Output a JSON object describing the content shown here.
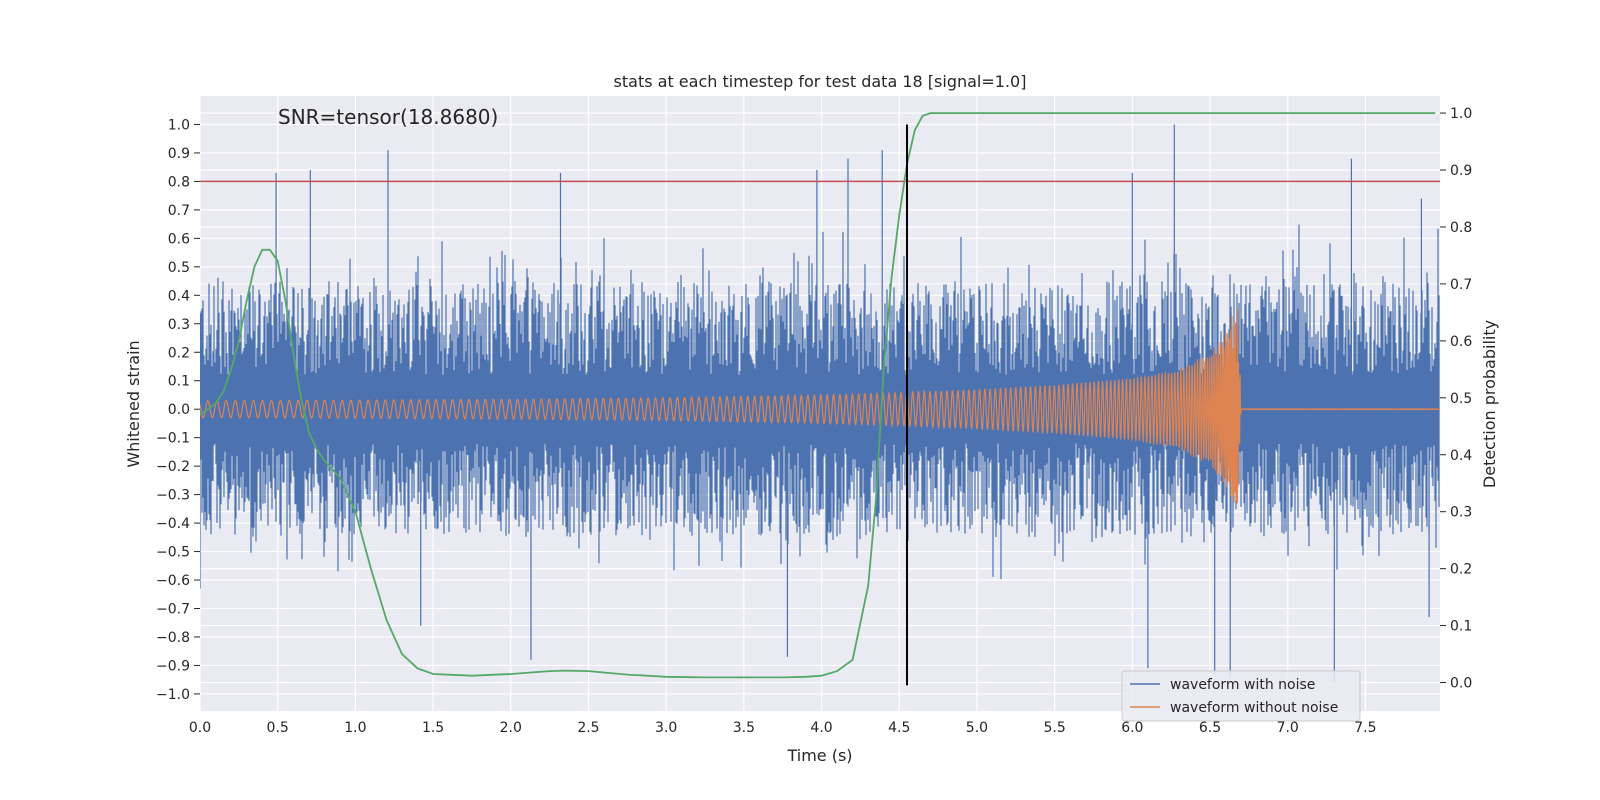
{
  "chart_data": {
    "type": "line",
    "title": "stats at each timestep for test data 18 [signal=1.0]",
    "xlabel": "Time (s)",
    "ylabel": "Whitened strain",
    "y2label": "Detection probability",
    "xlim": [
      0.0,
      7.98
    ],
    "ylim": [
      -1.06,
      1.1
    ],
    "y2lim": [
      -0.05,
      1.03
    ],
    "x_ticks": [
      0.0,
      0.5,
      1.0,
      1.5,
      2.0,
      2.5,
      3.0,
      3.5,
      4.0,
      4.5,
      5.0,
      5.5,
      6.0,
      6.5,
      7.0,
      7.5
    ],
    "x_tick_labels": [
      "0.0",
      "0.5",
      "1.0",
      "1.5",
      "2.0",
      "2.5",
      "3.0",
      "3.5",
      "4.0",
      "4.5",
      "5.0",
      "5.5",
      "6.0",
      "6.5",
      "7.0",
      "7.5"
    ],
    "y_ticks": [
      1.0,
      0.9,
      0.8,
      0.7,
      0.6,
      0.5,
      0.4,
      0.3,
      0.2,
      0.1,
      0.0,
      -0.1,
      -0.2,
      -0.3,
      -0.4,
      -0.5,
      -0.6,
      -0.7,
      -0.8,
      -0.9,
      -1.0
    ],
    "y_tick_labels": [
      "1.0",
      "0.9",
      "0.8",
      "0.7",
      "0.6",
      "0.5",
      "0.4",
      "0.3",
      "0.2",
      "0.1",
      "0.0",
      "−0.1",
      "−0.2",
      "−0.3",
      "−0.4",
      "−0.5",
      "−0.6",
      "−0.7",
      "−0.8",
      "−0.9",
      "−1.0"
    ],
    "y2_ticks": [
      1.0,
      0.9,
      0.8,
      0.7,
      0.6,
      0.5,
      0.4,
      0.3,
      0.2,
      0.1,
      0.0
    ],
    "y2_tick_labels": [
      "1.0",
      "0.9",
      "0.8",
      "0.7",
      "0.6",
      "0.5",
      "0.4",
      "0.3",
      "0.2",
      "0.1",
      "0.0"
    ],
    "grid": true,
    "legend_position": "lower-right",
    "annotation": "SNR=tensor(18.8680)",
    "threshold_line": {
      "y": 0.8,
      "color": "#c44e52"
    },
    "detection_vline": {
      "x": 4.55,
      "color": "#000000"
    },
    "series": [
      {
        "name": "waveform with noise",
        "color": "#4c72b0",
        "axis": "left",
        "style": "dense noise (band)",
        "typical_envelope": [
          -0.45,
          0.45
        ],
        "upper_spikes": [
          [
            0.49,
            0.83
          ],
          [
            0.71,
            0.84
          ],
          [
            1.21,
            0.91
          ],
          [
            2.32,
            0.83
          ],
          [
            3.97,
            0.84
          ],
          [
            4.17,
            0.88
          ],
          [
            4.39,
            0.91
          ],
          [
            6.27,
            1.0
          ],
          [
            6.0,
            0.83
          ],
          [
            7.41,
            0.88
          ],
          [
            7.86,
            0.74
          ]
        ],
        "lower_spikes": [
          [
            0.0,
            -0.63
          ],
          [
            1.42,
            -0.76
          ],
          [
            2.13,
            -0.88
          ],
          [
            3.78,
            -0.87
          ],
          [
            6.1,
            -0.91
          ],
          [
            6.53,
            -0.93
          ],
          [
            6.63,
            -0.94
          ],
          [
            7.3,
            -0.96
          ],
          [
            7.91,
            -0.73
          ]
        ]
      },
      {
        "name": "waveform without noise",
        "color": "#dd8452",
        "axis": "left",
        "style": "chirp",
        "envelope": {
          "x": [
            0.0,
            1.0,
            2.0,
            3.0,
            4.0,
            4.5,
            5.0,
            5.5,
            6.0,
            6.3,
            6.5,
            6.6,
            6.65,
            6.68,
            6.7
          ],
          "amplitude": [
            0.03,
            0.032,
            0.035,
            0.04,
            0.05,
            0.058,
            0.07,
            0.085,
            0.11,
            0.14,
            0.2,
            0.27,
            0.34,
            0.36,
            0.0
          ]
        }
      },
      {
        "name": "",
        "color": "#55a868",
        "axis": "right",
        "x": [
          0.0,
          0.05,
          0.1,
          0.15,
          0.2,
          0.25,
          0.3,
          0.35,
          0.4,
          0.45,
          0.5,
          0.55,
          0.6,
          0.65,
          0.7,
          0.75,
          0.8,
          0.9,
          1.0,
          1.1,
          1.2,
          1.3,
          1.4,
          1.5,
          1.75,
          2.0,
          2.25,
          2.35,
          2.5,
          2.75,
          3.0,
          3.25,
          3.5,
          3.75,
          3.9,
          4.0,
          4.1,
          4.2,
          4.3,
          4.35,
          4.4,
          4.45,
          4.5,
          4.55,
          4.6,
          4.65,
          4.7,
          4.8,
          5.0,
          6.0,
          7.0,
          7.95
        ],
        "y": [
          0.47,
          0.48,
          0.49,
          0.51,
          0.55,
          0.6,
          0.67,
          0.73,
          0.76,
          0.76,
          0.74,
          0.67,
          0.58,
          0.5,
          0.44,
          0.41,
          0.39,
          0.36,
          0.3,
          0.2,
          0.11,
          0.05,
          0.025,
          0.015,
          0.012,
          0.015,
          0.02,
          0.021,
          0.02,
          0.014,
          0.01,
          0.009,
          0.009,
          0.009,
          0.01,
          0.012,
          0.02,
          0.04,
          0.17,
          0.32,
          0.55,
          0.71,
          0.82,
          0.91,
          0.97,
          0.995,
          1.0,
          1.0,
          1.0,
          1.0,
          1.0,
          1.0
        ]
      }
    ]
  }
}
